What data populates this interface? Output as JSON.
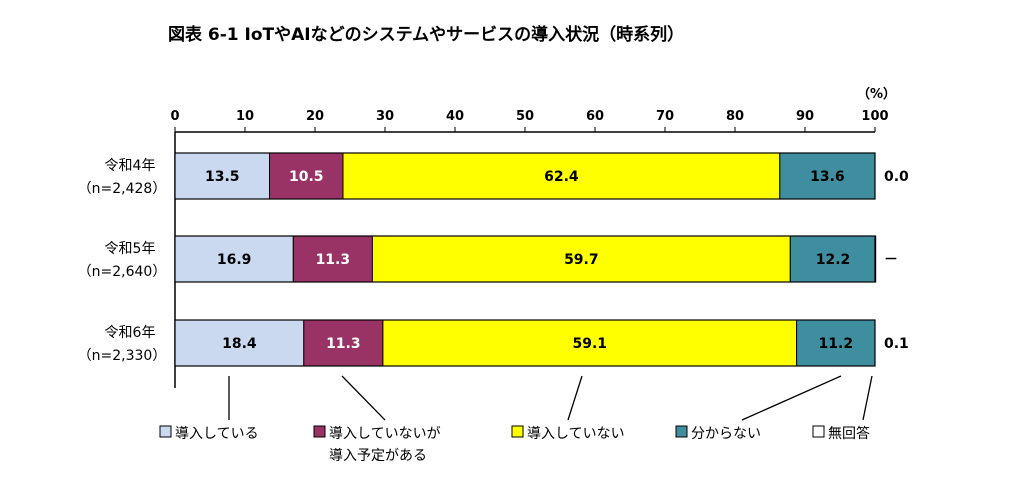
{
  "chart_data": {
    "type": "bar",
    "orientation": "horizontal",
    "stacked": true,
    "title": "図表 6-1 IoTやAIなどのシステムやサービスの導入状況（時系列）",
    "unit_label": "（%）",
    "xlim": [
      0,
      100
    ],
    "x_ticks": [
      "0",
      "10",
      "20",
      "30",
      "40",
      "50",
      "60",
      "70",
      "80",
      "90",
      "100"
    ],
    "grid": false,
    "legend_position": "bottom",
    "categories": [
      {
        "label": "令和4年",
        "n": "（n=2,428）"
      },
      {
        "label": "令和5年",
        "n": "（n=2,640）"
      },
      {
        "label": "令和6年",
        "n": "（n=2,330）"
      }
    ],
    "series": [
      {
        "name": "導入している",
        "legend_lines": [
          "導入している"
        ],
        "color": "#cad9f0",
        "values": [
          13.5,
          16.9,
          18.4
        ],
        "labels": [
          "13.5",
          "16.9",
          "18.4"
        ]
      },
      {
        "name": "導入していないが導入予定がある",
        "legend_lines": [
          "導入していないが",
          "導入予定がある"
        ],
        "color": "#993366",
        "text_color": "#ffffff",
        "values": [
          10.5,
          11.3,
          11.3
        ],
        "labels": [
          "10.5",
          "11.3",
          "11.3"
        ]
      },
      {
        "name": "導入していない",
        "legend_lines": [
          "導入していない"
        ],
        "color": "#ffff00",
        "values": [
          62.4,
          59.7,
          59.1
        ],
        "labels": [
          "62.4",
          "59.7",
          "59.1"
        ]
      },
      {
        "name": "分からない",
        "legend_lines": [
          "分からない"
        ],
        "color": "#3f8ea0",
        "values": [
          13.6,
          12.2,
          11.2
        ],
        "labels": [
          "13.6",
          "12.2",
          "11.2"
        ]
      },
      {
        "name": "無回答",
        "legend_lines": [
          "無回答"
        ],
        "color": "#ffffff",
        "values": [
          0.0,
          0,
          0.1
        ],
        "labels": [
          "0.0",
          "－",
          "0.1"
        ]
      }
    ]
  }
}
